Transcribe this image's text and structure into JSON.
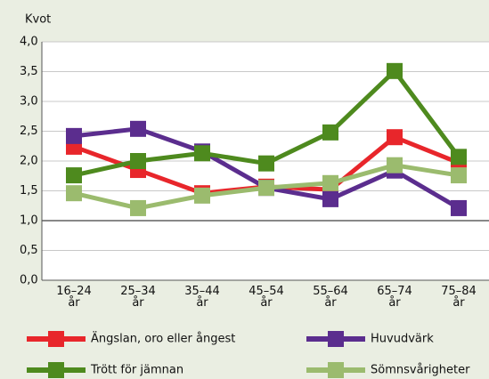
{
  "chart_data": {
    "type": "line",
    "y_label": "Kvot",
    "categories": [
      "16–24\når",
      "25–34\når",
      "35–44\når",
      "45–54\når",
      "55–64\når",
      "65–74\når",
      "75–84\når"
    ],
    "series": [
      {
        "name": "Ängslan, oro eller ångest",
        "color": "#e8262b",
        "values": [
          2.24,
          1.85,
          1.46,
          1.57,
          1.52,
          2.4,
          1.97
        ]
      },
      {
        "name": "Huvudvärk",
        "color": "#5b2d8e",
        "values": [
          2.42,
          2.54,
          2.16,
          1.55,
          1.36,
          1.84,
          1.21
        ]
      },
      {
        "name": "Trött för jämnan",
        "color": "#4e8a1e",
        "values": [
          1.76,
          2.0,
          2.13,
          1.96,
          2.48,
          3.51,
          2.07
        ]
      },
      {
        "name": "Sömnsvårigheter",
        "color": "#9bbb6e",
        "values": [
          1.46,
          1.21,
          1.42,
          1.55,
          1.63,
          1.93,
          1.76
        ]
      }
    ],
    "ylim": [
      0,
      4
    ],
    "yticks": [
      {
        "value": 0,
        "label": "0,0"
      },
      {
        "value": 0.5,
        "label": "0,5"
      },
      {
        "value": 1,
        "label": "1,0"
      },
      {
        "value": 1.5,
        "label": "1,5"
      },
      {
        "value": 2,
        "label": "2,0"
      },
      {
        "value": 2.5,
        "label": "2,5"
      },
      {
        "value": 3,
        "label": "3,0"
      },
      {
        "value": 3.5,
        "label": "3,5"
      },
      {
        "value": 4,
        "label": "4,0"
      }
    ],
    "reference_line": 1,
    "grid": true
  }
}
